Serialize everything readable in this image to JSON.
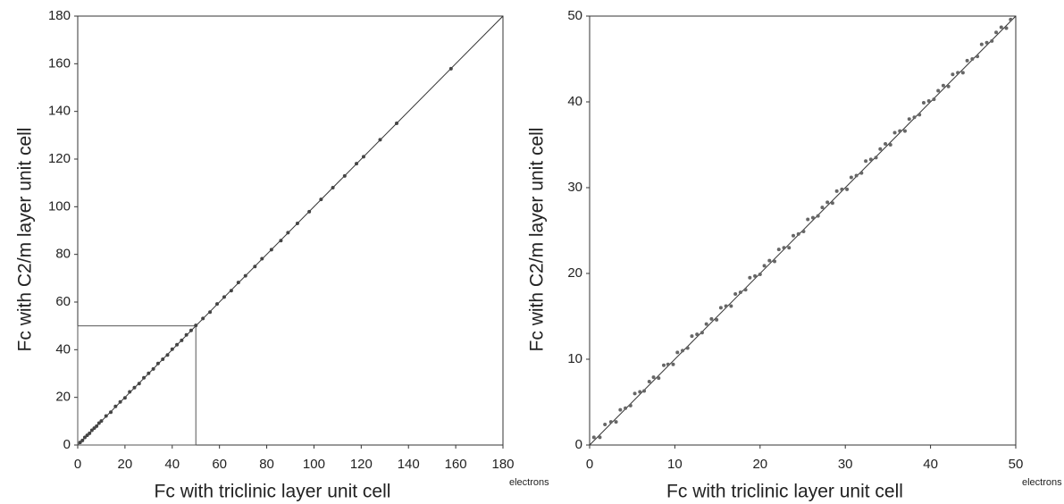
{
  "chart_data": [
    {
      "type": "scatter",
      "x_label": "Fc with triclinic layer unit cell",
      "y_label": "Fc with C2/m layer unit cell",
      "x_unit": "electrons",
      "xlim": [
        0,
        180
      ],
      "ylim": [
        0,
        180
      ],
      "xticks": [
        0,
        20,
        40,
        60,
        80,
        100,
        120,
        140,
        160,
        180
      ],
      "yticks": [
        0,
        20,
        40,
        60,
        80,
        100,
        120,
        140,
        160,
        180
      ],
      "diagonal": true,
      "inset_box": {
        "xlim": [
          0,
          50
        ],
        "ylim": [
          0,
          50
        ]
      },
      "color": "#444444",
      "x": [
        1,
        2,
        3,
        4,
        5,
        6,
        7,
        8,
        9,
        10,
        12,
        14,
        16,
        18,
        20,
        22,
        24,
        26,
        28,
        30,
        32,
        34,
        36,
        38,
        40,
        42,
        44,
        46,
        48,
        50,
        53,
        56,
        59,
        62,
        65,
        68,
        71,
        75,
        78,
        82,
        86,
        89,
        93,
        98,
        103,
        108,
        113,
        118,
        121,
        128,
        135,
        158
      ],
      "y": [
        1.1,
        1.9,
        3.2,
        4.1,
        4.9,
        6.2,
        7.1,
        7.9,
        9.2,
        10.1,
        12.2,
        13.8,
        16.2,
        18.1,
        19.8,
        22.3,
        24.1,
        25.8,
        28.2,
        30.1,
        31.9,
        34.2,
        36.0,
        37.8,
        40.2,
        42.1,
        43.9,
        46.2,
        48.1,
        50.2,
        53.1,
        55.8,
        59.2,
        62.1,
        64.8,
        68.2,
        71.0,
        74.9,
        78.2,
        82.0,
        85.8,
        89.1,
        93.0,
        97.9,
        103.1,
        108.0,
        112.9,
        118.1,
        121.0,
        128.1,
        135.0,
        157.9
      ]
    },
    {
      "type": "scatter",
      "x_label": "Fc with triclinic layer unit cell",
      "y_label": "Fc with C2/m layer unit cell",
      "x_unit": "electrons",
      "xlim": [
        0,
        50
      ],
      "ylim": [
        0,
        50
      ],
      "xticks": [
        0,
        10,
        20,
        30,
        40,
        50
      ],
      "yticks": [
        0,
        10,
        20,
        30,
        40,
        50
      ],
      "diagonal": true,
      "color": "#666666",
      "x": [
        0.5,
        1.2,
        1.8,
        2.5,
        3.1,
        3.6,
        4.2,
        4.8,
        5.3,
        5.9,
        6.4,
        7.0,
        7.5,
        8.1,
        8.7,
        9.2,
        9.8,
        10.3,
        10.9,
        11.5,
        12.0,
        12.6,
        13.2,
        13.7,
        14.3,
        14.9,
        15.4,
        16.0,
        16.6,
        17.1,
        17.7,
        18.3,
        18.8,
        19.4,
        20.0,
        20.5,
        21.1,
        21.7,
        22.2,
        22.8,
        23.4,
        23.9,
        24.5,
        25.1,
        25.6,
        26.2,
        26.8,
        27.3,
        27.9,
        28.5,
        29.0,
        29.6,
        30.2,
        30.7,
        31.3,
        31.9,
        32.4,
        33.0,
        33.6,
        34.1,
        34.7,
        35.3,
        35.8,
        36.4,
        37.0,
        37.5,
        38.1,
        38.7,
        39.2,
        39.8,
        40.4,
        40.9,
        41.5,
        42.1,
        42.6,
        43.2,
        43.8,
        44.3,
        44.9,
        45.5,
        46.0,
        46.6,
        47.2,
        47.7,
        48.3,
        48.9,
        49.4
      ],
      "y": [
        0.9,
        0.9,
        2.4,
        2.7,
        2.7,
        4.1,
        4.3,
        4.6,
        6.0,
        6.2,
        6.3,
        7.4,
        7.9,
        7.8,
        9.3,
        9.4,
        9.4,
        10.8,
        11.0,
        11.3,
        12.7,
        12.9,
        13.1,
        14.1,
        14.7,
        14.6,
        16.0,
        16.2,
        16.2,
        17.6,
        17.8,
        18.1,
        19.5,
        19.7,
        19.9,
        20.9,
        21.5,
        21.4,
        22.8,
        23.0,
        23.0,
        24.4,
        24.6,
        24.9,
        26.3,
        26.5,
        26.7,
        27.7,
        28.3,
        28.2,
        29.6,
        29.8,
        29.8,
        31.2,
        31.4,
        31.7,
        33.1,
        33.3,
        33.5,
        34.5,
        35.1,
        35.0,
        36.4,
        36.6,
        36.6,
        38.0,
        38.2,
        38.5,
        39.9,
        40.1,
        40.3,
        41.3,
        41.9,
        41.8,
        43.2,
        43.4,
        43.4,
        44.8,
        45.0,
        45.3,
        46.7,
        46.9,
        47.1,
        48.1,
        48.7,
        48.6,
        49.6
      ]
    }
  ]
}
